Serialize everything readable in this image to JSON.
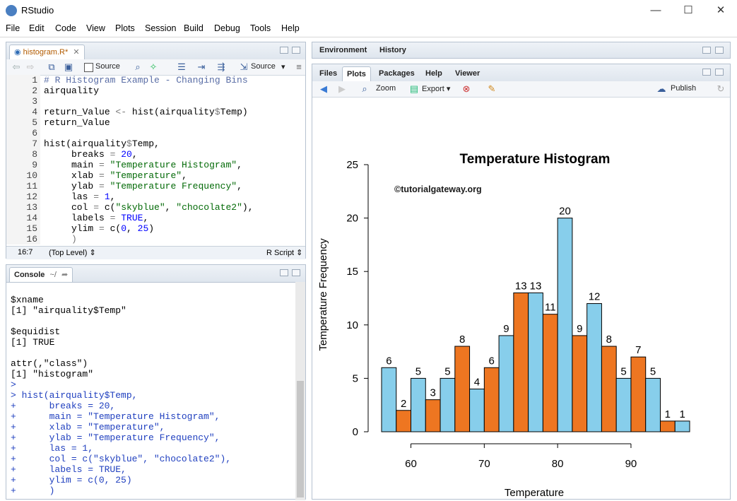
{
  "app": {
    "title": "RStudio"
  },
  "menu": [
    "File",
    "Edit",
    "Code",
    "View",
    "Plots",
    "Session",
    "Build",
    "Debug",
    "Tools",
    "Help"
  ],
  "window_controls": {
    "minimize": "—",
    "maximize": "☐",
    "close": "✕"
  },
  "editor": {
    "tab": "histogram.R*",
    "toolbar": {
      "source_on_save": "Source",
      "source": "Source"
    },
    "lines": [
      {
        "n": "1",
        "html": "<span class=\"comment\"># R Histogram Example - Changing Bins</span>"
      },
      {
        "n": "2",
        "html": "airquality"
      },
      {
        "n": "3",
        "html": ""
      },
      {
        "n": "4",
        "html": "return_Value <span class=\"op\">&lt;-</span> hist(airquality<span class=\"op\">$</span>Temp)"
      },
      {
        "n": "5",
        "html": "return_Value"
      },
      {
        "n": "6",
        "html": ""
      },
      {
        "n": "7",
        "html": "hist(airquality<span class=\"op\">$</span>Temp,"
      },
      {
        "n": "8",
        "html": "     breaks <span class=\"op\">=</span> <span class=\"num\">20</span>,"
      },
      {
        "n": "9",
        "html": "     main <span class=\"op\">=</span> <span class=\"str\">\"Temperature Histogram\"</span>,"
      },
      {
        "n": "10",
        "html": "     xlab <span class=\"op\">=</span> <span class=\"str\">\"Temperature\"</span>,"
      },
      {
        "n": "11",
        "html": "     ylab <span class=\"op\">=</span> <span class=\"str\">\"Temperature Frequency\"</span>,"
      },
      {
        "n": "12",
        "html": "     las <span class=\"op\">=</span> <span class=\"num\">1</span>,"
      },
      {
        "n": "13",
        "html": "     col <span class=\"op\">=</span> c(<span class=\"str\">\"skyblue\"</span>, <span class=\"str\">\"chocolate2\"</span>),"
      },
      {
        "n": "14",
        "html": "     labels <span class=\"op\">=</span> <span class=\"kw\">TRUE</span>,"
      },
      {
        "n": "15",
        "html": "     ylim <span class=\"op\">=</span> c(<span class=\"num\">0</span>, <span class=\"num\">25</span>)"
      },
      {
        "n": "16",
        "html": "     <span class=\"op\">)</span>"
      }
    ],
    "status": {
      "position": "16:7",
      "scope": "(Top Level) ⇕",
      "type": "R Script ⇕"
    }
  },
  "console": {
    "tab": "Console",
    "path": "~/",
    "lines": [
      {
        "text": "$xname",
        "cls": ""
      },
      {
        "text": "[1] \"airquality$Temp\"",
        "cls": ""
      },
      {
        "text": "",
        "cls": ""
      },
      {
        "text": "$equidist",
        "cls": ""
      },
      {
        "text": "[1] TRUE",
        "cls": ""
      },
      {
        "text": "",
        "cls": ""
      },
      {
        "text": "attr(,\"class\")",
        "cls": ""
      },
      {
        "text": "[1] \"histogram\"",
        "cls": ""
      },
      {
        "text": ">",
        "cls": "cmd"
      },
      {
        "text": "> hist(airquality$Temp,",
        "cls": "cmd"
      },
      {
        "text": "+      breaks = 20,",
        "cls": "cmd"
      },
      {
        "text": "+      main = \"Temperature Histogram\",",
        "cls": "cmd"
      },
      {
        "text": "+      xlab = \"Temperature\",",
        "cls": "cmd"
      },
      {
        "text": "+      ylab = \"Temperature Frequency\",",
        "cls": "cmd"
      },
      {
        "text": "+      las = 1,",
        "cls": "cmd"
      },
      {
        "text": "+      col = c(\"skyblue\", \"chocolate2\"),",
        "cls": "cmd"
      },
      {
        "text": "+      labels = TRUE,",
        "cls": "cmd"
      },
      {
        "text": "+      ylim = c(0, 25)",
        "cls": "cmd"
      },
      {
        "text": "+      )",
        "cls": "cmd"
      }
    ]
  },
  "env_pane": {
    "tabs": [
      "Environment",
      "History"
    ]
  },
  "files_pane": {
    "tabs": [
      "Files",
      "Plots",
      "Packages",
      "Help",
      "Viewer"
    ],
    "active_tab": "Plots",
    "toolbar": {
      "zoom": "Zoom",
      "export": "Export ▾",
      "publish": "Publish"
    }
  },
  "watermark": "©tutorialgateway.org",
  "colors": {
    "bar_a": "#87ceeb",
    "bar_b": "#ee7621"
  },
  "chart_data": {
    "type": "bar",
    "title": "Temperature Histogram",
    "xlabel": "Temperature",
    "ylabel": "Temperature Frequency",
    "breaks": [
      56,
      58,
      60,
      62,
      64,
      66,
      68,
      70,
      72,
      74,
      76,
      78,
      80,
      82,
      84,
      86,
      88,
      90,
      92,
      94,
      96,
      98
    ],
    "values": [
      6,
      2,
      5,
      3,
      5,
      8,
      4,
      6,
      9,
      13,
      13,
      11,
      20,
      9,
      12,
      8,
      5,
      7,
      5,
      1,
      1
    ],
    "x_ticks": [
      "60",
      "70",
      "80",
      "90"
    ],
    "y_ticks": [
      "0",
      "5",
      "10",
      "15",
      "20",
      "25"
    ],
    "ylim": [
      0,
      25
    ],
    "grid": false
  }
}
